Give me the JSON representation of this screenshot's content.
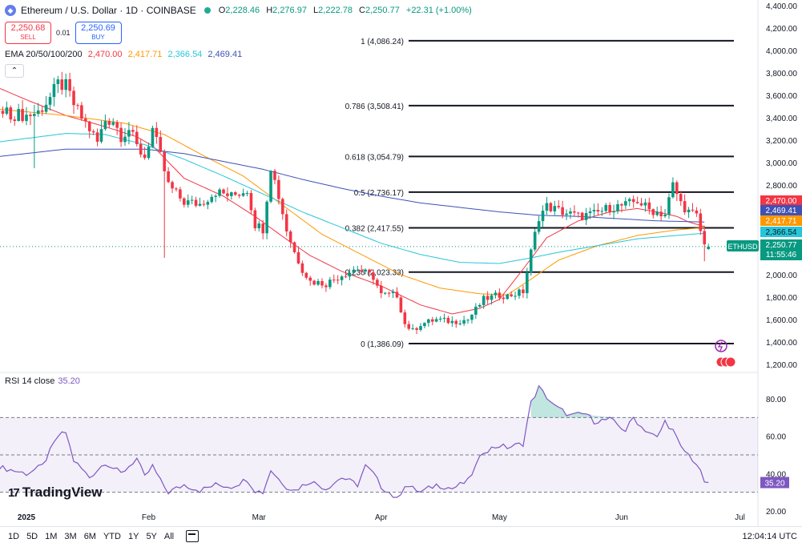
{
  "header": {
    "symbol_title": "Ethereum / U.S. Dollar · 1D · COINBASE",
    "ohlc": [
      {
        "k": "O",
        "v": "2,228.46"
      },
      {
        "k": "H",
        "v": "2,276.97"
      },
      {
        "k": "L",
        "v": "2,222.78"
      },
      {
        "k": "C",
        "v": "2,250.77"
      },
      {
        "k": "",
        "v": "+22.31 (+1.00%)"
      }
    ]
  },
  "trade": {
    "sell_price": "2,250.68",
    "sell_label": "SELL",
    "spread": "0.01",
    "buy_price": "2,250.69",
    "buy_label": "BUY"
  },
  "ema_legend": {
    "label": "EMA 20/50/100/200",
    "values": [
      "2,470.00",
      "2,417.71",
      "2,366.54",
      "2,469.41"
    ]
  },
  "collapse_icon": "chevron-up",
  "rsi_legend": {
    "label": "RSI 14 close",
    "value": "35.20"
  },
  "branding": {
    "logo_mark": "17",
    "logo_text": "TradingView"
  },
  "bottom_bar": {
    "ranges": [
      "1D",
      "5D",
      "1M",
      "3M",
      "6M",
      "YTD",
      "1Y",
      "5Y",
      "All"
    ],
    "clock": "12:04:14 UTC"
  },
  "colors": {
    "up": "#089981",
    "down": "#f23645",
    "ema20": "#f23645",
    "ema50": "#ff9800",
    "ema100": "#26c6da",
    "ema200": "#3f51b5",
    "rsi": "#7e57c2",
    "fib": "#131722"
  },
  "chart_data": {
    "type": "candlestick",
    "title": "Ethereum / U.S. Dollar · 1D · COINBASE",
    "y_axis": {
      "range": [
        1150,
        4450
      ],
      "ticks": [
        1200,
        1400,
        1600,
        1800,
        2000,
        2200,
        2400,
        2600,
        2800,
        3000,
        3200,
        3400,
        3600,
        3800,
        4000,
        4200,
        4400
      ],
      "tick_labels": [
        "1,200.00",
        "1,400.00",
        "1,600.00",
        "1,800.00",
        "2,000.00",
        "2,200.00",
        "2,400.00",
        "2,600.00",
        "2,800.00",
        "3,000.00",
        "3,200.00",
        "3,400.00",
        "3,600.00",
        "3,800.00",
        "4,000.00",
        "4,200.00",
        "4,400.00"
      ]
    },
    "x_axis": {
      "labels": [
        {
          "day": 0,
          "text": "2025",
          "bold": true
        },
        {
          "day": 31,
          "text": "Feb",
          "bold": false
        },
        {
          "day": 59,
          "text": "Mar",
          "bold": false
        },
        {
          "day": 90,
          "text": "Apr",
          "bold": false
        },
        {
          "day": 120,
          "text": "May",
          "bold": false
        },
        {
          "day": 151,
          "text": "Jun",
          "bold": false
        },
        {
          "day": 181,
          "text": "Jul",
          "bold": false
        }
      ]
    },
    "fib_levels": [
      {
        "ratio": "1",
        "price": 4086.24,
        "label": "1 (4,086.24)"
      },
      {
        "ratio": "0.786",
        "price": 3508.41,
        "label": "0.786 (3,508.41)"
      },
      {
        "ratio": "0.618",
        "price": 3054.79,
        "label": "0.618 (3,054.79)"
      },
      {
        "ratio": "0.5",
        "price": 2736.17,
        "label": "0.5 (2,736.17)"
      },
      {
        "ratio": "0.382",
        "price": 2417.55,
        "label": "0.382 (2,417.55)"
      },
      {
        "ratio": "0.236",
        "price": 2023.33,
        "label": "0.236 (2,023.33)"
      },
      {
        "ratio": "0",
        "price": 1386.09,
        "label": "0 (1,386.09)"
      }
    ],
    "price_badges": [
      {
        "text": "2,470.00",
        "price": 2470.0,
        "color": "#f23645",
        "text_color": "#ffffff"
      },
      {
        "text": "2,469.41",
        "price": 2469.41,
        "color": "#3f51b5",
        "text_color": "#ffffff"
      },
      {
        "text": "2,417.71",
        "price": 2417.71,
        "color": "#ff9800",
        "text_color": "#ffffff"
      },
      {
        "text": "2,366.54",
        "price": 2366.54,
        "color": "#26c6da",
        "text_color": "#131722"
      },
      {
        "text": "2,250.77",
        "price": 2250.77,
        "color": "#089981",
        "text_color": "#ffffff",
        "sub": "11:55:46"
      }
    ],
    "last_price_tag": "ETHUSD",
    "ema_series": [
      {
        "name": "EMA 20",
        "color": "#f23645",
        "points": [
          [
            -8,
            3680
          ],
          [
            0,
            3560
          ],
          [
            10,
            3420
          ],
          [
            20,
            3320
          ],
          [
            28,
            3230
          ],
          [
            32,
            3150
          ],
          [
            40,
            2860
          ],
          [
            50,
            2700
          ],
          [
            58,
            2520
          ],
          [
            65,
            2340
          ],
          [
            72,
            2170
          ],
          [
            80,
            2030
          ],
          [
            90,
            1900
          ],
          [
            100,
            1730
          ],
          [
            108,
            1650
          ],
          [
            115,
            1700
          ],
          [
            120,
            1780
          ],
          [
            126,
            2050
          ],
          [
            132,
            2330
          ],
          [
            140,
            2480
          ],
          [
            148,
            2560
          ],
          [
            155,
            2590
          ],
          [
            160,
            2560
          ],
          [
            165,
            2520
          ],
          [
            168,
            2470
          ],
          [
            172,
            2430
          ]
        ]
      },
      {
        "name": "EMA 50",
        "color": "#ff9800",
        "points": [
          [
            -8,
            3480
          ],
          [
            10,
            3420
          ],
          [
            25,
            3350
          ],
          [
            35,
            3250
          ],
          [
            45,
            3060
          ],
          [
            55,
            2880
          ],
          [
            65,
            2620
          ],
          [
            75,
            2360
          ],
          [
            85,
            2180
          ],
          [
            95,
            2000
          ],
          [
            105,
            1880
          ],
          [
            115,
            1830
          ],
          [
            122,
            1820
          ],
          [
            128,
            1960
          ],
          [
            135,
            2130
          ],
          [
            145,
            2260
          ],
          [
            155,
            2350
          ],
          [
            165,
            2400
          ],
          [
            172,
            2420
          ]
        ]
      },
      {
        "name": "EMA 100",
        "color": "#26c6da",
        "points": [
          [
            -8,
            3180
          ],
          [
            10,
            3260
          ],
          [
            20,
            3250
          ],
          [
            30,
            3160
          ],
          [
            40,
            3030
          ],
          [
            50,
            2880
          ],
          [
            60,
            2720
          ],
          [
            70,
            2560
          ],
          [
            80,
            2420
          ],
          [
            90,
            2280
          ],
          [
            100,
            2180
          ],
          [
            110,
            2110
          ],
          [
            120,
            2100
          ],
          [
            128,
            2150
          ],
          [
            135,
            2200
          ],
          [
            145,
            2260
          ],
          [
            155,
            2320
          ],
          [
            165,
            2350
          ],
          [
            172,
            2370
          ]
        ]
      },
      {
        "name": "EMA 200",
        "color": "#3f51b5",
        "points": [
          [
            -8,
            3050
          ],
          [
            10,
            3120
          ],
          [
            30,
            3120
          ],
          [
            40,
            3080
          ],
          [
            50,
            3010
          ],
          [
            60,
            2940
          ],
          [
            70,
            2850
          ],
          [
            80,
            2770
          ],
          [
            90,
            2700
          ],
          [
            100,
            2640
          ],
          [
            110,
            2600
          ],
          [
            120,
            2560
          ],
          [
            130,
            2530
          ],
          [
            140,
            2520
          ],
          [
            150,
            2500
          ],
          [
            160,
            2480
          ],
          [
            172,
            2470
          ]
        ]
      }
    ],
    "candle_path": [
      [
        -8,
        3450
      ],
      [
        0,
        3420
      ],
      [
        3,
        3450
      ],
      [
        6,
        3580
      ],
      [
        8,
        3700
      ],
      [
        10,
        3680
      ],
      [
        12,
        3520
      ],
      [
        14,
        3400
      ],
      [
        16,
        3300
      ],
      [
        18,
        3180
      ],
      [
        20,
        3380
      ],
      [
        22,
        3380
      ],
      [
        24,
        3240
      ],
      [
        26,
        3300
      ],
      [
        28,
        3140
      ],
      [
        30,
        3050
      ],
      [
        32,
        3300
      ],
      [
        34,
        3050
      ],
      [
        36,
        2800
      ],
      [
        38,
        2720
      ],
      [
        40,
        2650
      ],
      [
        44,
        2630
      ],
      [
        48,
        2740
      ],
      [
        52,
        2700
      ],
      [
        56,
        2760
      ],
      [
        58,
        2450
      ],
      [
        60,
        2410
      ],
      [
        62,
        2970
      ],
      [
        64,
        2700
      ],
      [
        66,
        2400
      ],
      [
        68,
        2200
      ],
      [
        70,
        2050
      ],
      [
        72,
        1940
      ],
      [
        76,
        1920
      ],
      [
        80,
        2000
      ],
      [
        84,
        2050
      ],
      [
        88,
        1980
      ],
      [
        90,
        1820
      ],
      [
        94,
        1820
      ],
      [
        96,
        1560
      ],
      [
        98,
        1500
      ],
      [
        100,
        1560
      ],
      [
        104,
        1600
      ],
      [
        108,
        1580
      ],
      [
        112,
        1600
      ],
      [
        116,
        1780
      ],
      [
        120,
        1820
      ],
      [
        122,
        1810
      ],
      [
        126,
        1850
      ],
      [
        128,
        2200
      ],
      [
        130,
        2520
      ],
      [
        132,
        2610
      ],
      [
        136,
        2560
      ],
      [
        140,
        2520
      ],
      [
        144,
        2540
      ],
      [
        148,
        2600
      ],
      [
        152,
        2620
      ],
      [
        155,
        2660
      ],
      [
        158,
        2580
      ],
      [
        162,
        2540
      ],
      [
        164,
        2800
      ],
      [
        166,
        2640
      ],
      [
        168,
        2560
      ],
      [
        170,
        2520
      ],
      [
        172,
        2260
      ],
      [
        173,
        2250
      ]
    ],
    "rsi": {
      "title": "RSI 14 close",
      "value": 35.2,
      "range": [
        17,
        92
      ],
      "tick_labels": [
        "80.00",
        "60.00",
        "40.00",
        "20.00"
      ],
      "ticks": [
        80,
        60,
        40,
        20
      ],
      "overbought": 70,
      "middle": 50,
      "oversold": 30,
      "points": [
        [
          -8,
          44
        ],
        [
          0,
          40
        ],
        [
          4,
          44
        ],
        [
          8,
          60
        ],
        [
          10,
          62
        ],
        [
          12,
          47
        ],
        [
          16,
          38
        ],
        [
          20,
          46
        ],
        [
          24,
          40
        ],
        [
          28,
          48
        ],
        [
          30,
          38
        ],
        [
          32,
          44
        ],
        [
          34,
          36
        ],
        [
          36,
          30
        ],
        [
          40,
          34
        ],
        [
          44,
          31
        ],
        [
          48,
          34
        ],
        [
          52,
          33
        ],
        [
          56,
          37
        ],
        [
          58,
          31
        ],
        [
          60,
          30
        ],
        [
          62,
          42
        ],
        [
          64,
          37
        ],
        [
          66,
          33
        ],
        [
          68,
          31
        ],
        [
          72,
          36
        ],
        [
          76,
          32
        ],
        [
          80,
          38
        ],
        [
          84,
          34
        ],
        [
          86,
          44
        ],
        [
          88,
          40
        ],
        [
          90,
          33
        ],
        [
          92,
          30
        ],
        [
          94,
          26
        ],
        [
          96,
          34
        ],
        [
          100,
          30
        ],
        [
          104,
          34
        ],
        [
          108,
          32
        ],
        [
          112,
          36
        ],
        [
          116,
          52
        ],
        [
          120,
          55
        ],
        [
          122,
          54
        ],
        [
          126,
          56
        ],
        [
          128,
          78
        ],
        [
          130,
          86
        ],
        [
          134,
          76
        ],
        [
          138,
          71
        ],
        [
          142,
          72
        ],
        [
          144,
          68
        ],
        [
          148,
          69
        ],
        [
          152,
          63
        ],
        [
          154,
          70
        ],
        [
          156,
          65
        ],
        [
          160,
          59
        ],
        [
          162,
          68
        ],
        [
          164,
          63
        ],
        [
          166,
          54
        ],
        [
          168,
          50
        ],
        [
          170,
          45
        ],
        [
          172,
          36
        ],
        [
          173,
          35.2
        ]
      ]
    },
    "days_visible": [
      -8,
      182
    ]
  }
}
